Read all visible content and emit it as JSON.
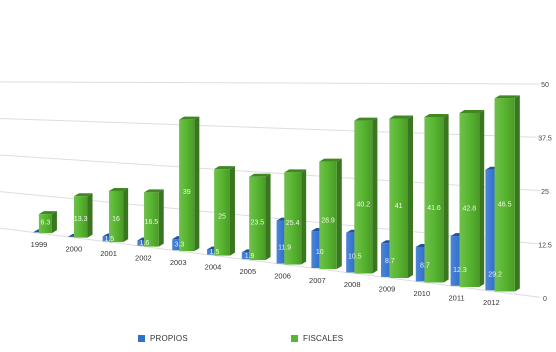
{
  "chart_data": {
    "type": "bar",
    "title": "",
    "xlabel": "",
    "ylabel": "",
    "categories": [
      "1999",
      "2000",
      "2001",
      "2002",
      "2003",
      "2004",
      "2005",
      "2006",
      "2007",
      "2008",
      "2009",
      "2010",
      "2011",
      "2012"
    ],
    "series": [
      {
        "name": "PROPIOS",
        "color": "#2f6fd0",
        "values": [
          0,
          0,
          1.5,
          1.6,
          3.3,
          1.5,
          1.9,
          11.9,
          10,
          10.5,
          8.7,
          8.7,
          12.3,
          29.2
        ],
        "labels": [
          "",
          "",
          "1.5",
          "1.6",
          "3.3",
          "1.5",
          "1.9",
          "11.9",
          "10",
          "10.5",
          "8.7",
          "8.7",
          "12.3",
          "29.2"
        ]
      },
      {
        "name": "FISCALES",
        "color": "#57b52f",
        "values": [
          6.3,
          13.3,
          16,
          16.5,
          39,
          25,
          23.5,
          25.4,
          28.9,
          40.2,
          41,
          41.6,
          42.8,
          46.5
        ],
        "labels": [
          "6.3",
          "13.3",
          "16",
          "16.5",
          "39",
          "25",
          "23.5",
          "25.4",
          "28.9",
          "40.2",
          "41",
          "41.6",
          "42.8",
          "46.5"
        ]
      }
    ],
    "ylim": [
      0,
      50
    ],
    "yticks": [
      "0",
      "12.5",
      "25",
      "37.5",
      "50"
    ],
    "grid": true,
    "legend_position": "bottom"
  },
  "legend": {
    "items": [
      {
        "label": "PROPIOS",
        "color": "#2f6fd0"
      },
      {
        "label": "FISCALES",
        "color": "#57b52f"
      }
    ]
  }
}
